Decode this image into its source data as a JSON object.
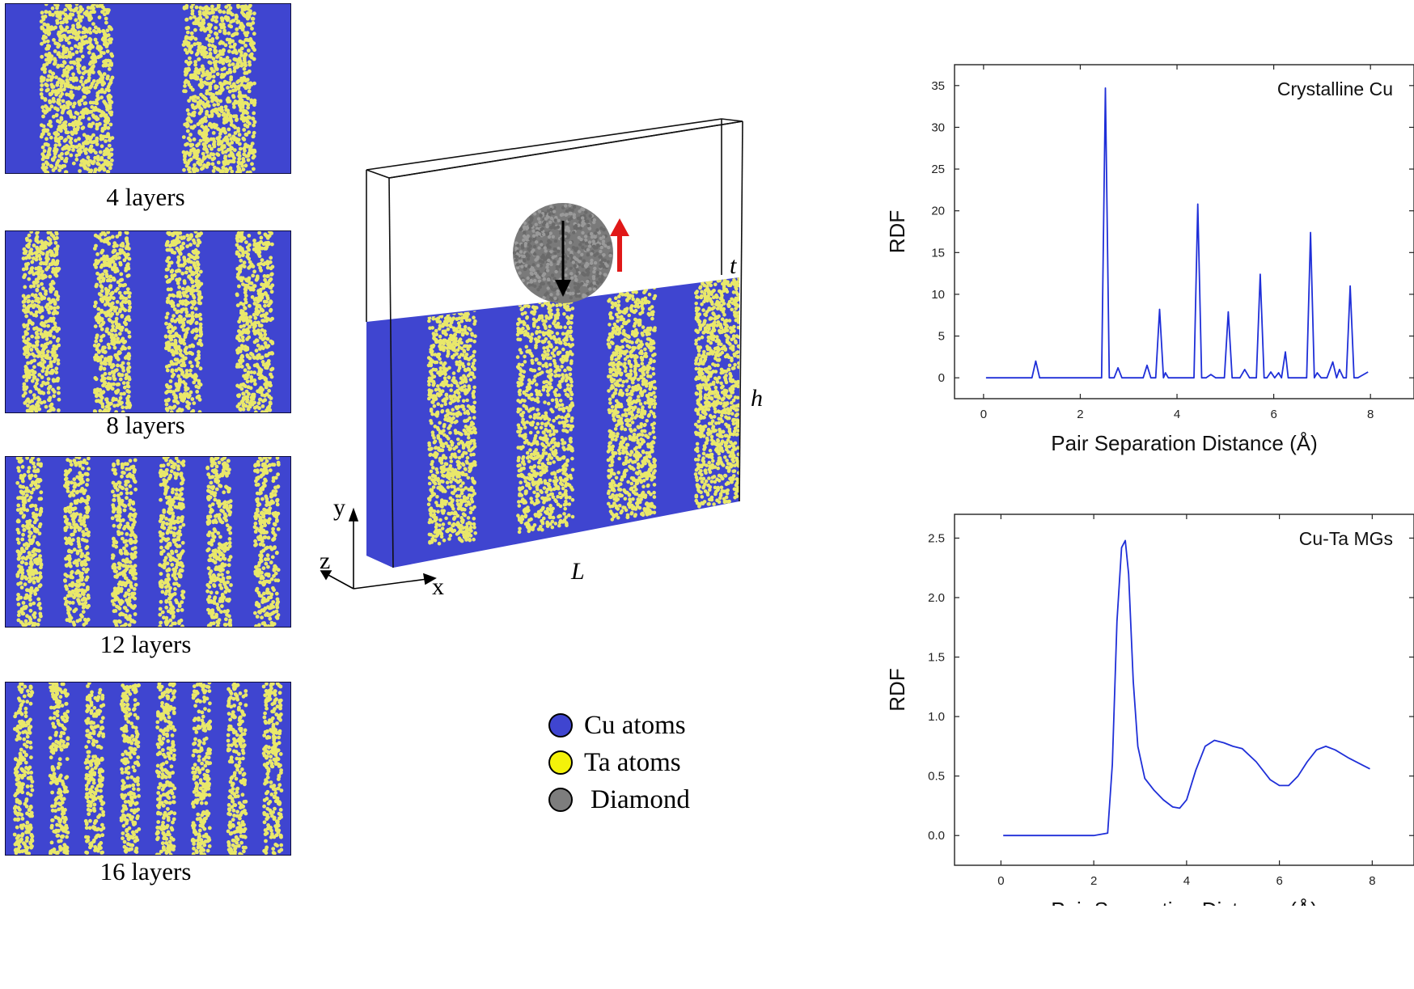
{
  "panels": [
    {
      "caption": "4 layers",
      "stripes": 4
    },
    {
      "caption": "8 layers",
      "stripes": 8
    },
    {
      "caption": "12 layers",
      "stripes": 12
    },
    {
      "caption": "16 layers",
      "stripes": 16
    }
  ],
  "schematic": {
    "labels": {
      "t": "t",
      "h": "h",
      "L": "L",
      "x": "x",
      "y": "y",
      "z": "z"
    }
  },
  "legend": [
    {
      "label": "Cu atoms",
      "color": "#3f45d0"
    },
    {
      "label": "Ta atoms",
      "color": "#f4f20a"
    },
    {
      "label": "Diamond",
      "color": "#7d7d7d"
    }
  ],
  "colors": {
    "cu": "#3f45d0",
    "ta": "#e9e86a",
    "diamond": "#8a8a8a",
    "arrow_down": "#000000",
    "arrow_up": "#e01818",
    "line": "#1f2fd8"
  },
  "chart_data": [
    {
      "type": "line",
      "title": "Crystalline Cu",
      "xlabel": "Pair Separation Distance (Å)",
      "ylabel": "RDF",
      "xlim": [
        -0.6,
        8.9
      ],
      "ylim": [
        -2.5,
        37.5
      ],
      "xticks": [
        0,
        2,
        4,
        6,
        8
      ],
      "yticks": [
        0,
        5,
        10,
        15,
        20,
        25,
        30,
        35
      ],
      "ytick_labels": [
        "0",
        "5",
        "10",
        "15",
        "20",
        "25",
        "30",
        "35"
      ],
      "series": [
        {
          "color": "#1f2fd8",
          "x": [
            0.05,
            1.0,
            1.08,
            1.16,
            2.44,
            2.52,
            2.6,
            2.7,
            2.78,
            2.86,
            3.3,
            3.38,
            3.46,
            3.56,
            3.64,
            3.72,
            3.76,
            3.82,
            3.9,
            4.35,
            4.43,
            4.51,
            4.6,
            4.7,
            4.8,
            4.98,
            5.06,
            5.14,
            5.2,
            5.3,
            5.4,
            5.5,
            5.64,
            5.72,
            5.8,
            5.86,
            5.94,
            6.02,
            6.1,
            6.16,
            6.24,
            6.3,
            6.38,
            6.68,
            6.76,
            6.84,
            6.9,
            6.98,
            7.1,
            7.22,
            7.3,
            7.36,
            7.44,
            7.5,
            7.58,
            7.66,
            7.74,
            7.8,
            7.95
          ],
          "y": [
            0,
            0,
            2,
            0,
            0,
            34.7,
            0,
            0,
            1.2,
            0,
            0,
            1.5,
            0,
            0,
            8.2,
            0,
            0.6,
            0,
            0,
            0,
            20.8,
            0,
            0,
            0.4,
            0,
            0,
            7.9,
            0,
            0,
            0,
            1.0,
            0,
            0,
            12.4,
            0,
            0,
            0.7,
            0,
            0.6,
            0,
            3.1,
            0,
            0,
            0,
            17.4,
            0,
            0.6,
            0,
            0,
            1.9,
            0,
            1.0,
            0,
            0,
            11.0,
            0,
            0,
            0.2,
            0.7
          ]
        }
      ]
    },
    {
      "type": "line",
      "title": "Cu-Ta MGs",
      "xlabel": "Pair Separation Distance (Å)",
      "ylabel": "RDF",
      "xlim": [
        -1.0,
        8.9
      ],
      "ylim": [
        -0.25,
        2.7
      ],
      "xticks": [
        0,
        2,
        4,
        6,
        8
      ],
      "yticks": [
        0,
        0.5,
        1.0,
        1.5,
        2.0,
        2.5
      ],
      "ytick_labels": [
        "0.0",
        "0.5",
        "1.0",
        "1.5",
        "2.0",
        "2.5"
      ],
      "series": [
        {
          "color": "#1f2fd8",
          "x": [
            0.05,
            1.0,
            2.0,
            2.3,
            2.4,
            2.5,
            2.6,
            2.68,
            2.75,
            2.85,
            2.95,
            3.1,
            3.3,
            3.5,
            3.7,
            3.85,
            4.0,
            4.2,
            4.4,
            4.6,
            4.8,
            5.0,
            5.2,
            5.5,
            5.8,
            6.0,
            6.2,
            6.4,
            6.6,
            6.8,
            7.0,
            7.2,
            7.5,
            7.8,
            7.95
          ],
          "y": [
            0,
            0,
            0,
            0.02,
            0.6,
            1.8,
            2.42,
            2.48,
            2.2,
            1.3,
            0.75,
            0.48,
            0.38,
            0.3,
            0.24,
            0.23,
            0.3,
            0.55,
            0.75,
            0.8,
            0.78,
            0.75,
            0.73,
            0.62,
            0.47,
            0.42,
            0.42,
            0.5,
            0.62,
            0.72,
            0.75,
            0.72,
            0.65,
            0.59,
            0.56
          ]
        }
      ]
    }
  ]
}
